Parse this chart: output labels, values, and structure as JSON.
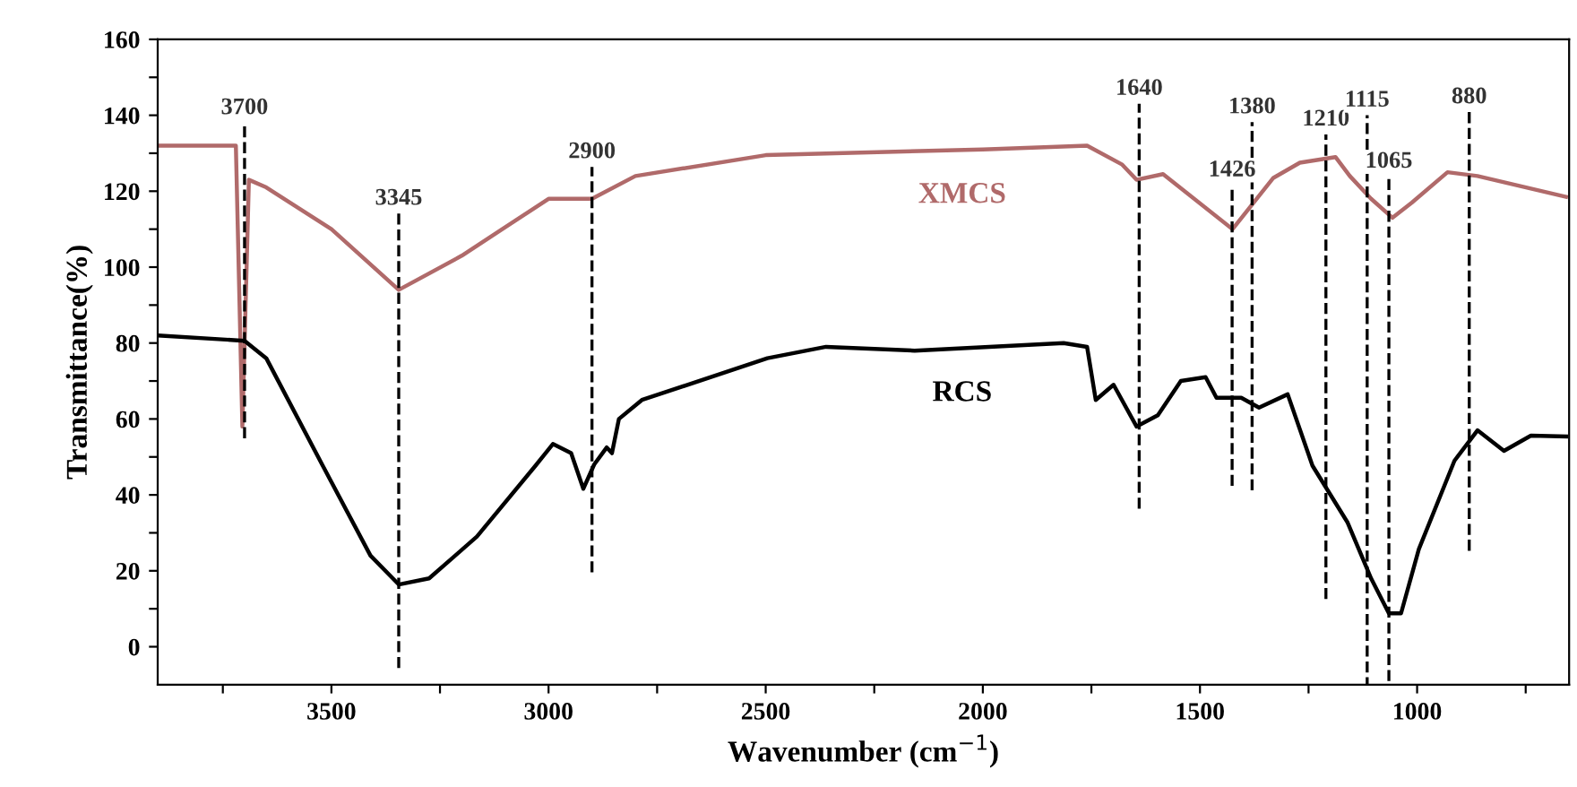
{
  "chart_data": {
    "type": "line",
    "xlabel": "Wavenumber (cm$^{−1}$)",
    "ylabel": "Transmittance(%)",
    "xlim": [
      3900,
      650
    ],
    "ylim": [
      -10,
      160
    ],
    "xticks": [
      {
        "value": 3750,
        "label": null
      },
      3500,
      {
        "value": 3250,
        "label": null
      },
      3000,
      {
        "value": 2750,
        "label": null
      },
      2500,
      {
        "value": 2250,
        "label": null
      },
      2000,
      {
        "value": 1750,
        "label": null
      },
      1500,
      {
        "value": 1250,
        "label": null
      },
      1000,
      {
        "value": 750,
        "label": null
      }
    ],
    "yticks": [
      0,
      {
        "value": 10,
        "label": null
      },
      20,
      {
        "value": 30,
        "label": null
      },
      40,
      {
        "value": 50,
        "label": null
      },
      60,
      {
        "value": 70,
        "label": null
      },
      80,
      {
        "value": 90,
        "label": null
      },
      100,
      {
        "value": 110,
        "label": null
      },
      120,
      {
        "value": 130,
        "label": null
      },
      140,
      {
        "value": 150,
        "label": null
      },
      160
    ],
    "grid": false,
    "legend": false,
    "marker": "none",
    "line_style": "solid",
    "series": [
      {
        "name": "XMCS",
        "color": "#b06a6a",
        "x": [
          3900,
          3720,
          3705,
          3690,
          3650,
          3500,
          3345,
          3200,
          3000,
          2900,
          2800,
          2500,
          2000,
          1760,
          1679,
          1646,
          1585,
          1425,
          1331,
          1270,
          1188,
          1155,
          1106,
          1057,
          1012,
          930,
          861,
          657
        ],
        "values": [
          132,
          132,
          58,
          123,
          121,
          110,
          94,
          103,
          118,
          118,
          124,
          129.5,
          131,
          132,
          127,
          123,
          124.5,
          110,
          123.5,
          127.5,
          129,
          124,
          118,
          113,
          117,
          125,
          124,
          118.5
        ]
      },
      {
        "name": "RCS",
        "color": "#000000",
        "x": [
          3900,
          3700,
          3650,
          3520,
          3410,
          3345,
          3275,
          3165,
          3030,
          2990,
          2948,
          2920,
          2895,
          2866,
          2854,
          2838,
          2785,
          2496,
          2361,
          2157,
          1814,
          1760,
          1740,
          1699,
          1646,
          1597,
          1544,
          1487,
          1462,
          1405,
          1364,
          1298,
          1241,
          1160,
          1106,
          1065,
          1037,
          996,
          914,
          861,
          800,
          738,
          657
        ],
        "values": [
          82,
          80.6,
          76,
          47.7,
          24,
          16.4,
          18,
          29,
          47.7,
          53.4,
          51,
          41.6,
          48,
          52.5,
          51,
          60,
          65,
          76,
          79,
          78,
          80,
          79,
          65,
          69,
          58,
          61,
          70,
          71,
          65.6,
          65.6,
          63,
          66.5,
          47.7,
          32.7,
          18,
          8.8,
          8.8,
          25.7,
          49,
          57,
          51.6,
          55.6,
          55.4
        ]
      }
    ],
    "ref_lines": [
      {
        "axis": "x",
        "value": 3700,
        "label": "3700",
        "line_style": "dashed",
        "color": "#000000"
      },
      {
        "axis": "x",
        "value": 3345,
        "label": "3345",
        "line_style": "dashed",
        "color": "#000000"
      },
      {
        "axis": "x",
        "value": 2900,
        "label": "2900",
        "line_style": "dashed",
        "color": "#000000"
      },
      {
        "axis": "x",
        "value": 1640,
        "label": "1640",
        "line_style": "dashed",
        "color": "#000000"
      },
      {
        "axis": "x",
        "value": 1426,
        "label": "1426",
        "line_style": "dashed",
        "color": "#000000"
      },
      {
        "axis": "x",
        "value": 1380,
        "label": "1380",
        "line_style": "dashed",
        "color": "#000000"
      },
      {
        "axis": "x",
        "value": 1210,
        "label": "1210",
        "line_style": "dashed",
        "color": "#000000"
      },
      {
        "axis": "x",
        "value": 1115,
        "label": "1115",
        "line_style": "dashed",
        "color": "#000000"
      },
      {
        "axis": "x",
        "value": 1065,
        "label": "1065",
        "line_style": "dashed",
        "color": "#000000"
      },
      {
        "axis": "x",
        "value": 880,
        "label": "880",
        "line_style": "dashed",
        "color": "#000000"
      }
    ]
  }
}
